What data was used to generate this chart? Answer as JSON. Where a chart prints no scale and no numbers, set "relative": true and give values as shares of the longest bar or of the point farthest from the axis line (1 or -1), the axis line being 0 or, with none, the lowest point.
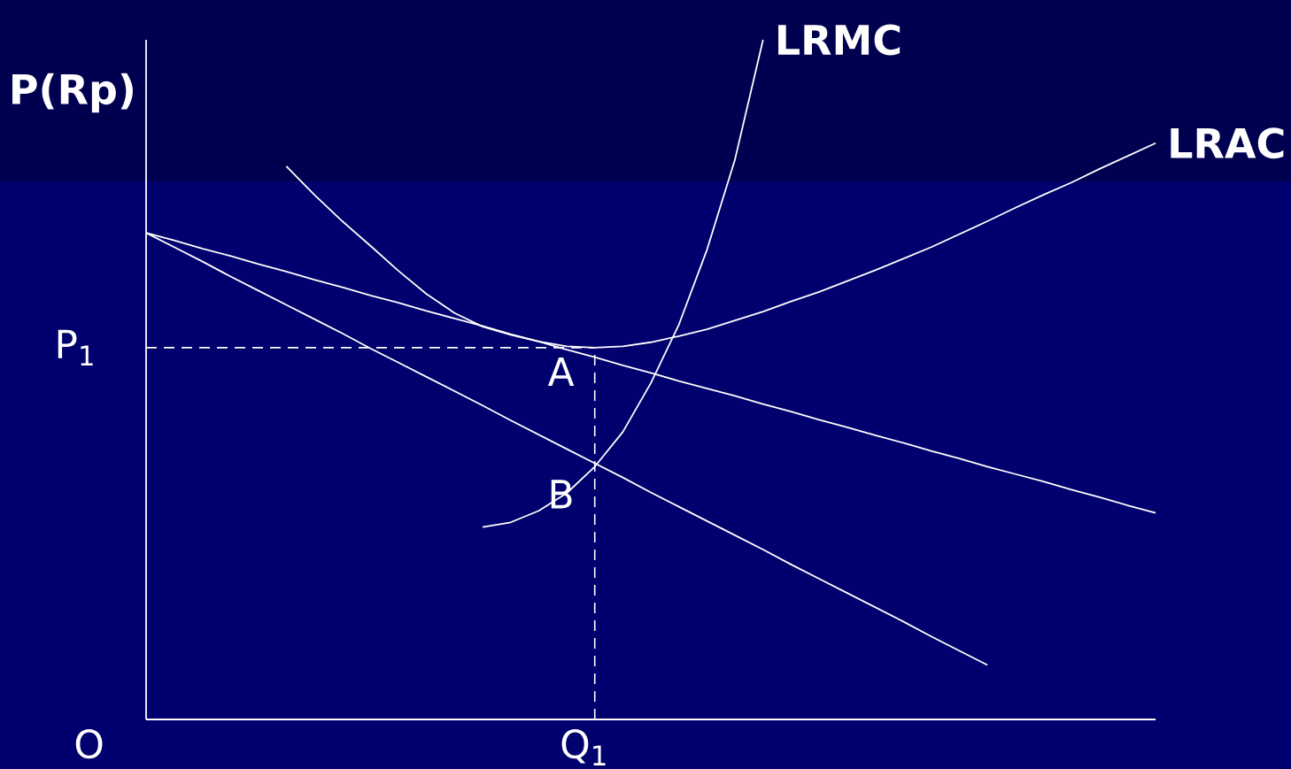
{
  "chart_data": {
    "type": "line",
    "relative": true,
    "ylabel": "P(Rp)",
    "categories": [
      null,
      null,
      null,
      null,
      null,
      null,
      null,
      null,
      null,
      null,
      null,
      null,
      null,
      null,
      null,
      null,
      null,
      null,
      null,
      null,
      null,
      null,
      null,
      null,
      null,
      null,
      null,
      null,
      null,
      null,
      null,
      null,
      null,
      null,
      null,
      null,
      null
    ],
    "series": [
      {
        "color": "#ffffff",
        "values": [
          0.716,
          0.705,
          0.693,
          0.682,
          0.67,
          0.659,
          0.647,
          0.636,
          0.624,
          0.613,
          0.601,
          0.59,
          0.579,
          0.567,
          0.556,
          0.544,
          0.533,
          0.521,
          0.51,
          0.498,
          0.487,
          0.476,
          0.464,
          0.453,
          0.441,
          0.43,
          0.418,
          0.407,
          0.395,
          0.384,
          0.372,
          0.361,
          0.35,
          0.338,
          0.327,
          0.315,
          0.304
        ]
      },
      {
        "color": "#ffffff",
        "values": [
          0.716,
          0.695,
          0.674,
          0.652,
          0.631,
          0.61,
          0.589,
          0.568,
          0.546,
          0.525,
          0.504,
          0.483,
          0.462,
          0.44,
          0.419,
          0.398,
          0.377,
          0.356,
          0.334,
          0.313,
          0.292,
          0.271,
          0.25,
          0.228,
          0.207,
          0.186,
          0.165,
          0.144,
          0.122,
          0.101,
          0.08,
          null,
          null,
          null,
          null,
          null,
          null
        ]
      },
      {
        "name": "LRAC",
        "color": "#ffffff",
        "values": [
          null,
          null,
          null,
          null,
          null,
          0.814,
          0.772,
          0.733,
          0.697,
          0.66,
          0.626,
          0.598,
          0.578,
          0.566,
          0.556,
          0.549,
          0.547,
          0.549,
          0.555,
          0.564,
          0.574,
          0.587,
          0.6,
          0.615,
          0.629,
          0.645,
          0.661,
          0.678,
          0.695,
          0.714,
          0.733,
          0.753,
          0.772,
          0.79,
          0.81,
          0.829,
          0.848
        ]
      },
      {
        "name": "LRMC",
        "color": "#ffffff",
        "values": [
          null,
          null,
          null,
          null,
          null,
          null,
          null,
          null,
          null,
          null,
          null,
          null,
          0.283,
          0.29,
          0.307,
          0.333,
          0.372,
          0.423,
          0.495,
          0.581,
          0.691,
          0.824,
          1.0,
          null,
          null,
          null,
          null,
          null,
          null,
          null,
          null,
          null,
          null,
          null,
          null,
          null,
          null
        ]
      }
    ],
    "ref_lines": [
      {
        "axis": "y",
        "value": 0.547,
        "label": "P$_{1}$",
        "color": "#ffffff",
        "line_style": "dashed"
      }
    ],
    "annotations": [
      {
        "text": "A",
        "y": 0.547
      },
      "B",
      "O",
      "Q$_{1}$"
    ]
  }
}
